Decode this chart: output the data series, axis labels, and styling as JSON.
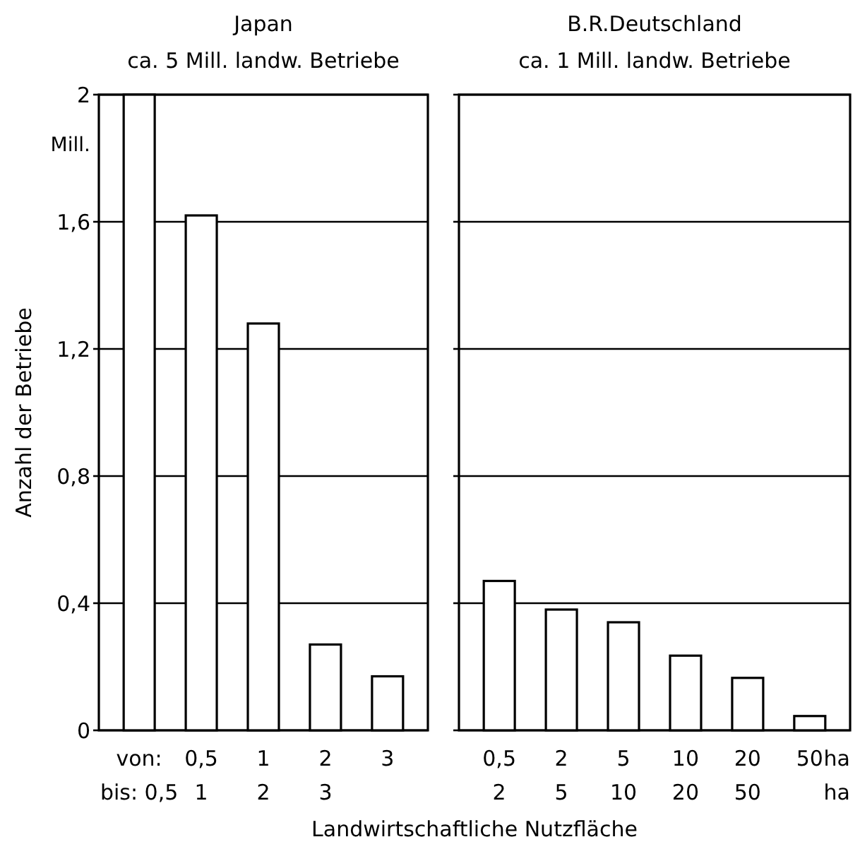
{
  "chart_data": [
    {
      "type": "bar",
      "title": "Japan",
      "subtitle": "ca. 5 Mill. landw. Betriebe",
      "ylabel": "Anzahl der Betriebe",
      "xlabel": "Landwirtschaftliche Nutzfläche",
      "categories": [
        "von:\nbis: 0,5",
        "0,5\n1",
        "1\n2",
        "2\n3",
        "3\n"
      ],
      "values": [
        2.0,
        1.62,
        1.28,
        0.27,
        0.17
      ],
      "color": "#ffffff",
      "ylim": [
        0,
        2
      ],
      "yticks": [
        0,
        {
          "value": 0.4,
          "label": "0,4"
        },
        {
          "value": 0.8,
          "label": "0,8"
        },
        {
          "value": 1.2,
          "label": "1,2"
        },
        {
          "value": 1.6,
          "label": "1,6"
        },
        2
      ],
      "grid": "y",
      "annotations": [
        "Mill."
      ]
    },
    {
      "type": "bar",
      "title": "B.R.Deutschland",
      "subtitle": "ca. 1 Mill. landw. Betriebe",
      "categories": [
        "0,5\n2",
        "2\n5",
        "5\n10",
        "10\n20",
        "20\n50",
        "50\n"
      ],
      "values": [
        0.47,
        0.38,
        0.34,
        0.235,
        0.165,
        0.045
      ],
      "color": "#ffffff",
      "ylim": [
        0,
        2
      ],
      "yticks": [
        {
          "value": 0,
          "label": null
        },
        {
          "value": 0.4,
          "label": null
        },
        {
          "value": 0.8,
          "label": null
        },
        {
          "value": 1.2,
          "label": null
        },
        {
          "value": 1.6,
          "label": null
        },
        {
          "value": 2,
          "label": null
        }
      ],
      "grid": "y",
      "tick_labels": "x",
      "annotations": [
        "ha",
        "ha"
      ]
    }
  ]
}
